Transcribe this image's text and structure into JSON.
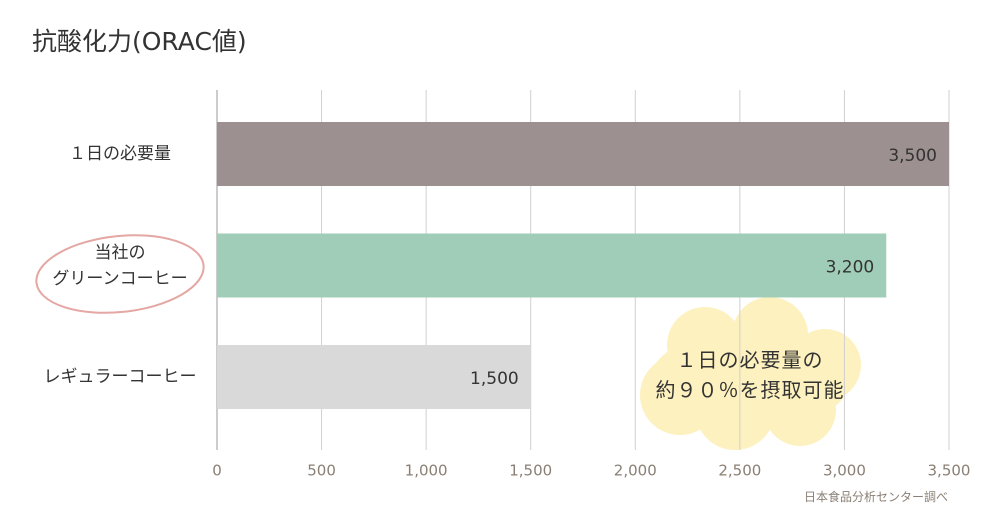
{
  "chart_data": {
    "type": "bar",
    "orientation": "horizontal",
    "title": "抗酸化力(ORAC値)",
    "categories": [
      "１日の必要量",
      "当社の\nグリーンコーヒー",
      "レギュラーコーヒー"
    ],
    "values": [
      3500,
      3200,
      1500
    ],
    "value_labels": [
      "3,500",
      "3,200",
      "1,500"
    ],
    "colors": [
      "#9c9190",
      "#a0cdb7",
      "#d9d9d9"
    ],
    "xlim": [
      0,
      3500
    ],
    "xticks": [
      0,
      500,
      {
        "value": 1000,
        "label": "1,000"
      },
      {
        "value": 1500,
        "label": "1,500"
      },
      {
        "value": 2000,
        "label": "2,000"
      },
      {
        "value": 2500,
        "label": "2,500"
      },
      {
        "value": 3000,
        "label": "3,000"
      },
      {
        "value": 3500,
        "label": "3,500"
      }
    ],
    "grid": true,
    "annotation": "１日の必要量の\n約９０％を摂取可能",
    "source": "日本食品分析センター調べ"
  }
}
